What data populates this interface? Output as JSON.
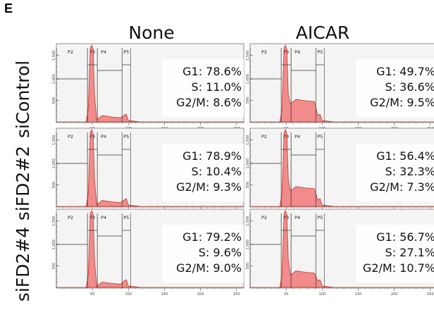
{
  "panel_letter": "E",
  "columns": [
    "None",
    "AICAR"
  ],
  "rows": [
    "siControl",
    "siFD2#2",
    "siFD2#4"
  ],
  "colors": {
    "histogram_fill": "#f28b8b",
    "histogram_stroke": "#c0392b",
    "gate_line": "#333333",
    "panel_bg": "#f4f4f4"
  },
  "gates": [
    "P2",
    "P3",
    "P4",
    "P5"
  ],
  "x_ticks": [
    "50",
    "100",
    "150",
    "200",
    "250"
  ],
  "y_ticks": [
    "500",
    "1,000",
    "1,500"
  ],
  "chart_data": [
    {
      "type": "area",
      "row": "siControl",
      "condition": "None",
      "stats": [
        "G1: 78.6%",
        "S: 11.0%",
        "G2/M: 8.6%"
      ],
      "G1": 78.6,
      "S": 11.0,
      "G2M": 8.6
    },
    {
      "type": "area",
      "row": "siControl",
      "condition": "AICAR",
      "stats": [
        "G1: 49.7%",
        "S: 36.6%",
        "G2/M: 9.5%"
      ],
      "G1": 49.7,
      "S": 36.6,
      "G2M": 9.5
    },
    {
      "type": "area",
      "row": "siFD2#2",
      "condition": "None",
      "stats": [
        "G1: 78.9%",
        "S: 10.4%",
        "G2/M: 9.3%"
      ],
      "G1": 78.9,
      "S": 10.4,
      "G2M": 9.3
    },
    {
      "type": "area",
      "row": "siFD2#2",
      "condition": "AICAR",
      "stats": [
        "G1: 56.4%",
        "S: 32.3%",
        "G2/M: 7.3%"
      ],
      "G1": 56.4,
      "S": 32.3,
      "G2M": 7.3
    },
    {
      "type": "area",
      "row": "siFD2#4",
      "condition": "None",
      "stats": [
        "G1: 79.2%",
        "S:  9.6%",
        "G2/M: 9.0%"
      ],
      "G1": 79.2,
      "S": 9.6,
      "G2M": 9.0
    },
    {
      "type": "area",
      "row": "siFD2#4",
      "condition": "AICAR",
      "stats": [
        "G1: 56.7%",
        "S: 27.1%",
        "G2/M: 10.7%"
      ],
      "G1": 56.7,
      "S": 27.1,
      "G2M": 10.7
    }
  ]
}
